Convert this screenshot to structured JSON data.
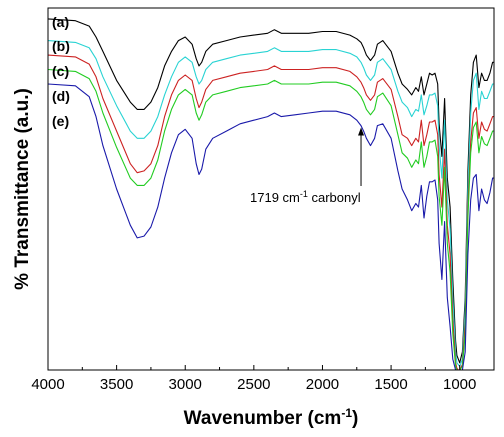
{
  "chart_data": {
    "type": "line",
    "xlabel": "Wavenumber (cm",
    "xlabel_sup": "-1",
    "xlabel_end": ")",
    "ylabel": "% Transmittance (a.u.)",
    "xlim": [
      4000,
      750
    ],
    "ylim": [
      0,
      100
    ],
    "x_ticks": [
      4000,
      3500,
      3000,
      2500,
      2000,
      1500,
      1000
    ],
    "x_tick_labels": [
      "4000",
      "3500",
      "3000",
      "2500",
      "2000",
      "1500",
      "1000"
    ],
    "grid": false,
    "legend": "series labels at top-left",
    "annotation": {
      "text_pre": "1719 cm",
      "text_sup": "-1",
      "text_post": " carbonyl",
      "x": 1719,
      "y": 67
    },
    "series": [
      {
        "name": "(a)",
        "color": "#000000",
        "x": [
          4000,
          3800,
          3700,
          3650,
          3600,
          3500,
          3400,
          3350,
          3300,
          3250,
          3200,
          3150,
          3100,
          3050,
          3000,
          2950,
          2920,
          2900,
          2880,
          2850,
          2800,
          2700,
          2600,
          2500,
          2400,
          2350,
          2300,
          2200,
          2100,
          2000,
          1900,
          1800,
          1750,
          1719,
          1700,
          1680,
          1650,
          1620,
          1600,
          1560,
          1500,
          1450,
          1420,
          1380,
          1350,
          1320,
          1300,
          1280,
          1260,
          1240,
          1220,
          1200,
          1180,
          1160,
          1150,
          1130,
          1110,
          1090,
          1070,
          1050,
          1030,
          1020,
          1010,
          1000,
          980,
          960,
          940,
          920,
          900,
          880,
          860,
          840,
          820,
          800,
          780,
          760,
          750
        ],
        "y": [
          97,
          96.5,
          95,
          92,
          88,
          80,
          74,
          72,
          72,
          74,
          78,
          84,
          88,
          91,
          92,
          90,
          86,
          84,
          85,
          88,
          90,
          91,
          92,
          92.5,
          93,
          94,
          93,
          93,
          93,
          93.5,
          93.5,
          92.5,
          91.5,
          90.5,
          89,
          87,
          85.5,
          87,
          90,
          91,
          88,
          82,
          79,
          77.5,
          76,
          78,
          77,
          81,
          76,
          79,
          82,
          81.5,
          82,
          79,
          68,
          59,
          75,
          53,
          45,
          25,
          8,
          4,
          3,
          2,
          5,
          20,
          55,
          76,
          85,
          87,
          78,
          82,
          80,
          80,
          82,
          85,
          85
        ]
      },
      {
        "name": "(b)",
        "color": "#29d3d3",
        "x": [
          4000,
          3800,
          3700,
          3650,
          3600,
          3500,
          3400,
          3350,
          3300,
          3250,
          3200,
          3150,
          3100,
          3050,
          3000,
          2950,
          2920,
          2900,
          2880,
          2850,
          2800,
          2700,
          2600,
          2500,
          2400,
          2350,
          2300,
          2200,
          2100,
          2000,
          1900,
          1800,
          1750,
          1719,
          1700,
          1680,
          1650,
          1620,
          1600,
          1560,
          1500,
          1450,
          1420,
          1380,
          1350,
          1320,
          1300,
          1280,
          1260,
          1240,
          1220,
          1200,
          1180,
          1160,
          1150,
          1130,
          1110,
          1090,
          1070,
          1050,
          1030,
          1020,
          1010,
          1000,
          980,
          960,
          940,
          920,
          900,
          880,
          860,
          840,
          820,
          800,
          780,
          760,
          750
        ],
        "y": [
          91,
          90.5,
          89,
          86,
          81,
          73,
          66,
          64,
          64,
          66,
          70,
          76,
          81,
          85,
          86.5,
          85,
          81,
          79,
          80,
          83,
          85,
          86,
          87,
          87.5,
          88,
          89,
          88,
          88,
          88,
          88.5,
          88.5,
          87.5,
          86.5,
          85,
          83.5,
          81.5,
          80,
          81.5,
          85,
          86,
          83,
          77,
          74,
          72.5,
          70,
          72,
          71.5,
          76,
          70.5,
          73,
          76,
          76,
          76.5,
          73,
          62,
          53,
          69,
          47,
          39,
          20,
          5,
          2,
          1.5,
          1,
          3,
          17,
          50,
          71,
          80,
          82,
          72,
          77,
          75,
          75,
          77,
          79,
          79
        ]
      },
      {
        "name": "(c)",
        "color": "#cc2222",
        "x": [
          4000,
          3800,
          3700,
          3650,
          3600,
          3500,
          3400,
          3350,
          3300,
          3250,
          3200,
          3150,
          3100,
          3050,
          3000,
          2950,
          2920,
          2900,
          2880,
          2850,
          2800,
          2700,
          2600,
          2500,
          2400,
          2350,
          2300,
          2200,
          2100,
          2000,
          1900,
          1800,
          1750,
          1719,
          1700,
          1680,
          1650,
          1620,
          1600,
          1560,
          1500,
          1450,
          1420,
          1380,
          1350,
          1320,
          1300,
          1280,
          1260,
          1240,
          1220,
          1200,
          1180,
          1160,
          1150,
          1130,
          1110,
          1090,
          1070,
          1050,
          1030,
          1020,
          1010,
          1000,
          980,
          960,
          940,
          920,
          900,
          880,
          860,
          840,
          820,
          800,
          780,
          760,
          750
        ],
        "y": [
          87,
          86.5,
          84.5,
          81,
          75,
          66,
          57,
          54.5,
          55,
          57,
          62,
          70,
          76,
          80,
          81.5,
          80,
          75,
          72.5,
          74,
          77.5,
          80,
          81,
          82,
          82.5,
          83,
          84,
          83,
          83,
          83,
          83.5,
          83.5,
          82.5,
          81,
          79.5,
          78,
          76,
          74.5,
          76,
          79.5,
          80.5,
          77.5,
          70,
          65,
          64,
          62,
          64,
          63,
          69,
          62,
          65,
          68.5,
          68.5,
          69,
          65,
          54,
          45,
          61,
          40,
          32,
          14,
          2,
          0.5,
          0,
          0,
          1.5,
          13,
          45,
          63,
          71,
          72.5,
          64,
          68.5,
          66.5,
          66,
          68,
          70,
          70
        ]
      },
      {
        "name": "(d)",
        "color": "#22cc22",
        "x": [
          4000,
          3800,
          3700,
          3650,
          3600,
          3500,
          3400,
          3350,
          3300,
          3250,
          3200,
          3150,
          3100,
          3050,
          3000,
          2950,
          2920,
          2900,
          2880,
          2850,
          2800,
          2700,
          2600,
          2500,
          2400,
          2350,
          2300,
          2200,
          2100,
          2000,
          1900,
          1800,
          1750,
          1719,
          1700,
          1680,
          1650,
          1620,
          1600,
          1560,
          1500,
          1450,
          1420,
          1380,
          1350,
          1320,
          1300,
          1280,
          1260,
          1240,
          1220,
          1200,
          1180,
          1160,
          1150,
          1130,
          1110,
          1090,
          1070,
          1050,
          1030,
          1020,
          1010,
          1000,
          980,
          960,
          940,
          920,
          900,
          880,
          860,
          840,
          820,
          800,
          780,
          760,
          750
        ],
        "y": [
          83,
          82.5,
          80.5,
          77,
          71,
          61.5,
          53,
          51,
          51,
          53,
          58,
          66,
          72,
          76,
          77.5,
          76,
          71,
          69,
          70.5,
          74,
          76,
          77,
          78,
          78.5,
          79,
          80,
          79,
          79,
          79,
          79.5,
          79.5,
          78.5,
          77,
          75.5,
          74,
          72,
          70.5,
          72,
          75.5,
          76.5,
          73,
          65,
          60,
          58.5,
          56,
          58,
          57,
          63,
          56,
          59,
          63,
          63,
          63.5,
          59,
          48,
          40,
          56,
          35,
          27,
          10,
          1,
          0,
          0,
          0,
          1,
          10,
          42,
          60,
          67,
          68.5,
          60,
          64.5,
          62.5,
          62,
          64,
          66,
          66
        ]
      },
      {
        "name": "(e)",
        "color": "#1a1aaa",
        "x": [
          4000,
          3800,
          3700,
          3650,
          3600,
          3500,
          3400,
          3350,
          3300,
          3250,
          3200,
          3150,
          3100,
          3050,
          3000,
          2950,
          2920,
          2900,
          2880,
          2850,
          2800,
          2700,
          2600,
          2500,
          2400,
          2350,
          2300,
          2200,
          2100,
          2000,
          1900,
          1800,
          1750,
          1719,
          1700,
          1680,
          1650,
          1620,
          1600,
          1560,
          1500,
          1450,
          1420,
          1380,
          1350,
          1320,
          1300,
          1280,
          1260,
          1240,
          1220,
          1200,
          1180,
          1160,
          1150,
          1130,
          1110,
          1090,
          1070,
          1050,
          1030,
          1020,
          1010,
          1000,
          980,
          960,
          940,
          920,
          900,
          880,
          860,
          840,
          820,
          800,
          780,
          760,
          750
        ],
        "y": [
          79,
          78.5,
          75.5,
          70,
          62,
          50,
          40,
          36.5,
          37,
          39.5,
          45,
          53,
          60,
          65,
          66.5,
          64,
          57,
          54,
          55.5,
          61,
          64,
          66,
          68,
          69,
          70,
          71,
          70,
          70.5,
          71,
          71.5,
          71.5,
          70.5,
          69,
          67.5,
          66,
          64,
          62,
          64,
          67.5,
          68,
          64,
          55,
          50,
          47,
          44,
          46,
          45,
          51,
          42,
          48,
          52,
          52,
          52.5,
          47,
          35,
          25,
          41,
          20,
          12,
          3,
          0,
          0,
          0,
          0,
          0,
          5,
          32,
          47,
          53,
          54,
          44,
          50,
          47,
          46,
          49,
          53,
          53
        ]
      }
    ]
  }
}
